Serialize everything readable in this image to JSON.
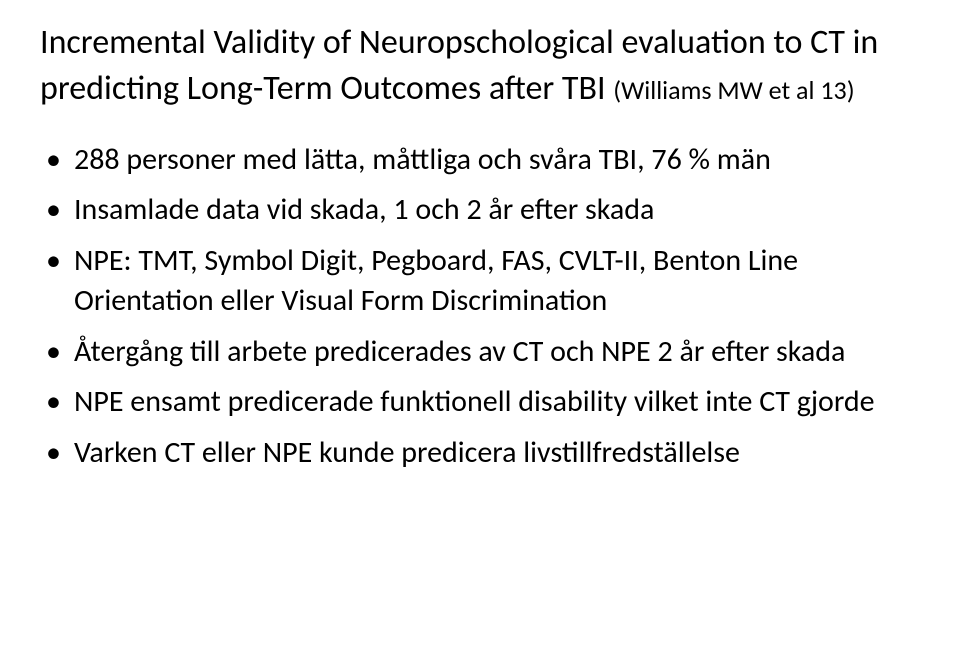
{
  "title": {
    "main": "Incremental Validity of Neuropschological evaluation to CT in predicting Long-Term Outcomes after TBI ",
    "ref": "(Williams MW et al 13)"
  },
  "bullets": [
    "288 personer med lätta, måttliga och svåra TBI, 76 % män",
    "Insamlade data vid skada, 1 och 2 år efter skada",
    "NPE: TMT, Symbol Digit, Pegboard, FAS, CVLT-II, Benton Line Orientation eller Visual Form Discrimination",
    "Återgång till arbete predicerades av CT och NPE 2 år efter skada",
    "NPE ensamt predicerade funktionell disability vilket inte CT gjorde",
    "Varken CT eller NPE kunde predicera livstillfredställelse"
  ],
  "style": {
    "background_color": "#ffffff",
    "text_color": "#000000",
    "title_fontsize": 34,
    "ref_fontsize": 26,
    "bullet_fontsize": 30,
    "font_family": "Calibri"
  }
}
